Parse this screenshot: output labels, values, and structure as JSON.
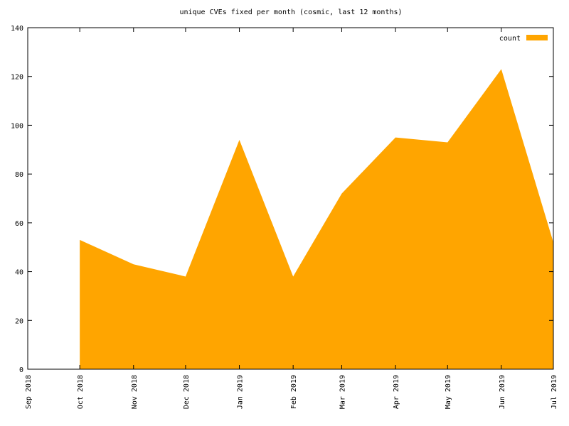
{
  "chart_data": {
    "type": "area",
    "title": "unique CVEs fixed per month (cosmic, last 12 months)",
    "x": [
      "2018-10",
      "2018-11",
      "2018-12",
      "2019-01",
      "2019-02",
      "2019-03",
      "2019-04",
      "2019-05",
      "2019-06",
      "2019-07"
    ],
    "series": [
      {
        "name": "count",
        "color": "#ffa500",
        "values": [
          53,
          43,
          38,
          94,
          38,
          72,
          95,
          93,
          123,
          52
        ]
      }
    ],
    "xlim": [
      "2018-09",
      "2019-07"
    ],
    "xticks": [
      {
        "value": "2018-09",
        "label": "Sep 2018"
      },
      {
        "value": "2018-10",
        "label": "Oct 2018"
      },
      {
        "value": "2018-11",
        "label": "Nov 2018"
      },
      {
        "value": "2018-12",
        "label": "Dec 2018"
      },
      {
        "value": "2019-01",
        "label": "Jan 2019"
      },
      {
        "value": "2019-02",
        "label": "Feb 2019"
      },
      {
        "value": "2019-03",
        "label": "Mar 2019"
      },
      {
        "value": "2019-04",
        "label": "Apr 2019"
      },
      {
        "value": "2019-05",
        "label": "May 2019"
      },
      {
        "value": "2019-06",
        "label": "Jun 2019"
      },
      {
        "value": "2019-07",
        "label": "Jul 2019"
      }
    ],
    "ylim": [
      0,
      140
    ],
    "yticks": [
      0,
      20,
      40,
      60,
      80,
      100,
      120,
      140
    ],
    "legend": "top-right",
    "grid": false
  }
}
